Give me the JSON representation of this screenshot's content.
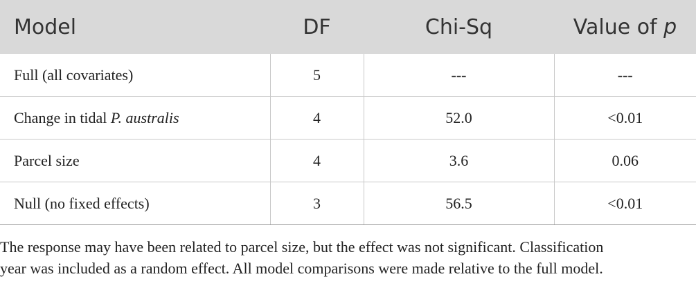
{
  "table": {
    "header": [
      "Model",
      "DF",
      "Chi-Sq",
      [
        "Value of ",
        "p"
      ]
    ],
    "rows": [
      [
        "Full (all covariates)",
        "5",
        "---",
        "---"
      ],
      [
        [
          "Change in tidal ",
          "P. australis"
        ],
        "4",
        "52.0",
        "<0.01"
      ],
      [
        "Parcel size",
        "4",
        "3.6",
        "0.06"
      ],
      [
        "Null (no fixed effects)",
        "3",
        "56.5",
        "<0.01"
      ]
    ]
  },
  "footnote": "The response may have been related to parcel size, but the effect was not significant. Classification year was included as a random effect. All model comparisons were made relative to the full model."
}
